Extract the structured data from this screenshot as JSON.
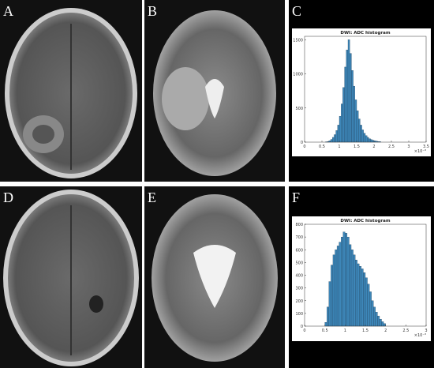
{
  "panels": [
    "A",
    "B",
    "C",
    "D",
    "E",
    "F"
  ],
  "chart_data": [
    {
      "type": "histogram",
      "title": "DWI: ADC histogram",
      "x_exponent": "×10⁻³",
      "color": "#3d86b8",
      "bins": [
        0.6,
        0.65,
        0.7,
        0.75,
        0.8,
        0.85,
        0.9,
        0.95,
        1.0,
        1.05,
        1.1,
        1.15,
        1.2,
        1.25,
        1.3,
        1.35,
        1.4,
        1.45,
        1.5,
        1.55,
        1.6,
        1.65,
        1.7,
        1.75,
        1.8,
        1.85,
        1.9,
        1.95,
        2.0,
        2.05,
        2.1,
        2.15,
        2.2
      ],
      "values": [
        5,
        10,
        20,
        40,
        70,
        110,
        170,
        250,
        380,
        560,
        800,
        1100,
        1350,
        1500,
        1300,
        1050,
        820,
        620,
        460,
        340,
        250,
        180,
        130,
        95,
        70,
        50,
        38,
        28,
        20,
        15,
        10,
        7
      ],
      "xlim": [
        0,
        3.5
      ],
      "xticks": [
        0,
        0.5,
        1,
        1.5,
        2,
        2.5,
        3,
        3.5
      ],
      "ylim": [
        0,
        1550
      ],
      "yticks": [
        0,
        500,
        1000,
        1500
      ]
    },
    {
      "type": "histogram",
      "title": "DWI: ADC histogram",
      "x_exponent": "×10⁻³",
      "color": "#3d86b8",
      "bins": [
        0.5,
        0.55,
        0.6,
        0.65,
        0.7,
        0.75,
        0.8,
        0.85,
        0.9,
        0.95,
        1.0,
        1.05,
        1.1,
        1.15,
        1.2,
        1.25,
        1.3,
        1.35,
        1.4,
        1.45,
        1.5,
        1.55,
        1.6,
        1.65,
        1.7,
        1.75,
        1.8,
        1.85,
        1.9,
        1.95,
        2.0
      ],
      "values": [
        30,
        150,
        350,
        480,
        560,
        600,
        630,
        660,
        700,
        740,
        730,
        700,
        640,
        600,
        560,
        520,
        490,
        470,
        450,
        420,
        380,
        330,
        270,
        200,
        150,
        110,
        80,
        55,
        35,
        20
      ],
      "xlim": [
        0,
        3
      ],
      "xticks": [
        0,
        0.5,
        1,
        1.5,
        2,
        2.5,
        3
      ],
      "ylim": [
        0,
        800
      ],
      "yticks": [
        0,
        100,
        200,
        300,
        400,
        500,
        600,
        700,
        800
      ]
    }
  ]
}
